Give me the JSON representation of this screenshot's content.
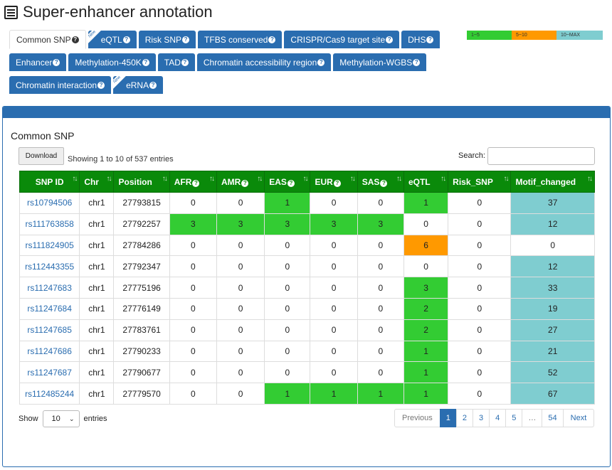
{
  "page": {
    "title": "Super-enhancer annotation"
  },
  "tabs": [
    [
      {
        "label": "Common SNP",
        "help": "?",
        "active": true,
        "new": false
      },
      {
        "label": "eQTL",
        "help": "?",
        "active": false,
        "new": true,
        "new_label": "New"
      },
      {
        "label": "Risk SNP",
        "help": "?",
        "active": false,
        "new": false
      },
      {
        "label": "TFBS conserved",
        "help": "?",
        "active": false,
        "new": false
      },
      {
        "label": "CRISPR/Cas9 target site",
        "help": "?",
        "active": false,
        "new": false
      },
      {
        "label": "DHS",
        "help": "?",
        "active": false,
        "new": false
      }
    ],
    [
      {
        "label": "Enhancer",
        "help": "?",
        "active": false,
        "new": false
      },
      {
        "label": "Methylation-450K",
        "help": "?",
        "active": false,
        "new": false
      },
      {
        "label": "TAD",
        "help": "?",
        "active": false,
        "new": false
      },
      {
        "label": "Chromatin accessibility region",
        "help": "?",
        "active": false,
        "new": false
      },
      {
        "label": "Methylation-WGBS",
        "help": "?",
        "active": false,
        "new": false
      }
    ],
    [
      {
        "label": "Chromatin interaction",
        "help": "?",
        "active": false,
        "new": false
      },
      {
        "label": "eRNA",
        "help": "?",
        "active": false,
        "new": true,
        "new_label": "New"
      }
    ]
  ],
  "legend": {
    "low": "1~5",
    "mid": "5~10",
    "high": "10~MAX",
    "colors": {
      "low": "#33cc33",
      "mid": "#ff9900",
      "high": "#7fcdd0"
    }
  },
  "panel": {
    "title": "Common SNP",
    "download_label": "Download",
    "info": "Showing 1 to 10 of 537 entries",
    "search_label": "Search:",
    "search_value": ""
  },
  "table": {
    "columns": [
      {
        "label": "SNP ID",
        "help": false
      },
      {
        "label": "Chr",
        "help": false
      },
      {
        "label": "Position",
        "help": false
      },
      {
        "label": "AFR",
        "help": true
      },
      {
        "label": "AMR",
        "help": true
      },
      {
        "label": "EAS",
        "help": true
      },
      {
        "label": "EUR",
        "help": true
      },
      {
        "label": "SAS",
        "help": true
      },
      {
        "label": "eQTL",
        "help": false
      },
      {
        "label": "Risk_SNP",
        "help": false
      },
      {
        "label": "Motif_changed",
        "help": false
      }
    ],
    "sort_glyph": "↑↓",
    "rows": [
      [
        "rs10794506",
        "chr1",
        "27793815",
        "0",
        "0",
        "1",
        "0",
        "0",
        "1",
        "0",
        "37"
      ],
      [
        "rs111763858",
        "chr1",
        "27792257",
        "3",
        "3",
        "3",
        "3",
        "3",
        "0",
        "0",
        "12"
      ],
      [
        "rs111824905",
        "chr1",
        "27784286",
        "0",
        "0",
        "0",
        "0",
        "0",
        "6",
        "0",
        "0"
      ],
      [
        "rs112443355",
        "chr1",
        "27792347",
        "0",
        "0",
        "0",
        "0",
        "0",
        "0",
        "0",
        "12"
      ],
      [
        "rs11247683",
        "chr1",
        "27775196",
        "0",
        "0",
        "0",
        "0",
        "0",
        "3",
        "0",
        "33"
      ],
      [
        "rs11247684",
        "chr1",
        "27776149",
        "0",
        "0",
        "0",
        "0",
        "0",
        "2",
        "0",
        "19"
      ],
      [
        "rs11247685",
        "chr1",
        "27783761",
        "0",
        "0",
        "0",
        "0",
        "0",
        "2",
        "0",
        "27"
      ],
      [
        "rs11247686",
        "chr1",
        "27790233",
        "0",
        "0",
        "0",
        "0",
        "0",
        "1",
        "0",
        "21"
      ],
      [
        "rs11247687",
        "chr1",
        "27790677",
        "0",
        "0",
        "0",
        "0",
        "0",
        "1",
        "0",
        "52"
      ],
      [
        "rs112485244",
        "chr1",
        "27779570",
        "0",
        "0",
        "1",
        "1",
        "1",
        "1",
        "0",
        "67"
      ]
    ],
    "cell_colors": [
      [
        "",
        "",
        "",
        "",
        "",
        "g",
        "",
        "",
        "g",
        "",
        "b"
      ],
      [
        "",
        "",
        "",
        "g",
        "g",
        "g",
        "g",
        "g",
        "",
        "",
        "b"
      ],
      [
        "",
        "",
        "",
        "",
        "",
        "",
        "",
        "",
        "o",
        "",
        ""
      ],
      [
        "",
        "",
        "",
        "",
        "",
        "",
        "",
        "",
        "",
        "",
        "b"
      ],
      [
        "",
        "",
        "",
        "",
        "",
        "",
        "",
        "",
        "g",
        "",
        "b"
      ],
      [
        "",
        "",
        "",
        "",
        "",
        "",
        "",
        "",
        "g",
        "",
        "b"
      ],
      [
        "",
        "",
        "",
        "",
        "",
        "",
        "",
        "",
        "g",
        "",
        "b"
      ],
      [
        "",
        "",
        "",
        "",
        "",
        "",
        "",
        "",
        "g",
        "",
        "b"
      ],
      [
        "",
        "",
        "",
        "",
        "",
        "",
        "",
        "",
        "g",
        "",
        "b"
      ],
      [
        "",
        "",
        "",
        "",
        "",
        "g",
        "g",
        "g",
        "g",
        "",
        "b"
      ]
    ]
  },
  "footer": {
    "show_label": "Show",
    "entries_value": "10",
    "entries_label": "entries",
    "pagination": [
      "Previous",
      "1",
      "2",
      "3",
      "4",
      "5",
      "…",
      "54",
      "Next"
    ],
    "active_page": "1"
  }
}
